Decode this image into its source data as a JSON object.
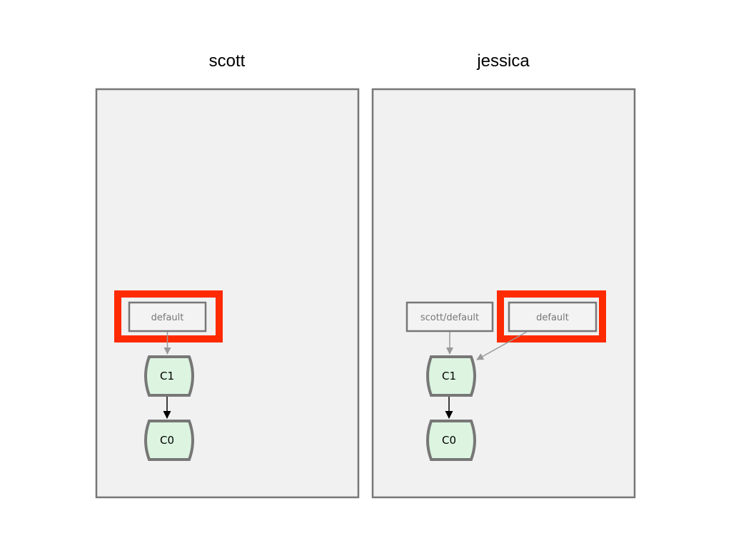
{
  "colors": {
    "highlight": "#ff2a00",
    "commit_fill": "#dcf4e0",
    "panel_fill": "#f1f1f1",
    "border": "#777777",
    "branch_arrow": "#999999",
    "parent_arrow": "#000000"
  },
  "panels": [
    {
      "name": "scott",
      "branches": [
        {
          "label": "default",
          "highlighted": true,
          "points_to": "C1"
        }
      ],
      "commits": [
        {
          "label": "C1"
        },
        {
          "label": "C0"
        }
      ]
    },
    {
      "name": "jessica",
      "branches": [
        {
          "label": "scott/default",
          "highlighted": false,
          "points_to": "C1"
        },
        {
          "label": "default",
          "highlighted": true,
          "points_to": "C1"
        }
      ],
      "commits": [
        {
          "label": "C1"
        },
        {
          "label": "C0"
        }
      ]
    }
  ]
}
